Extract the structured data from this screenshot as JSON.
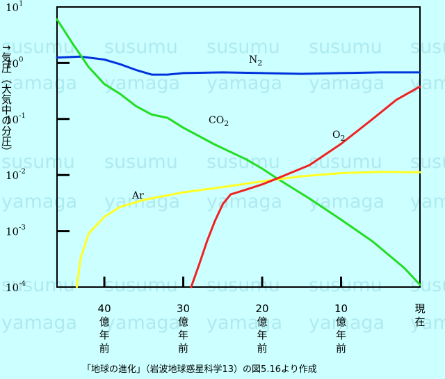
{
  "chart_data": {
    "type": "line",
    "title": "",
    "ylabel": "↑気圧（大気中の分圧）",
    "y_scale": "log",
    "ylim": [
      0.0001,
      10
    ],
    "y_ticks": [
      {
        "base": "10",
        "exp": "1"
      },
      {
        "base": "10",
        "exp": "0"
      },
      {
        "base": "10",
        "exp": "-1"
      },
      {
        "base": "10",
        "exp": "-2"
      },
      {
        "base": "10",
        "exp": "-3"
      },
      {
        "base": "10",
        "exp": "-4"
      }
    ],
    "xlabel": "",
    "xlim": [
      46,
      0
    ],
    "x_ticks": [
      {
        "value": 40,
        "label": "40",
        "unit": [
          "億",
          "年",
          "前"
        ]
      },
      {
        "value": 30,
        "label": "30",
        "unit": [
          "億",
          "年",
          "前"
        ]
      },
      {
        "value": 20,
        "label": "20",
        "unit": [
          "億",
          "年",
          "前"
        ]
      },
      {
        "value": 10,
        "label": "10",
        "unit": [
          "億",
          "年",
          "前"
        ]
      },
      {
        "value": 0,
        "label": "",
        "unit": [
          "現",
          "在"
        ]
      }
    ],
    "grid": false,
    "series": [
      {
        "name": "N2",
        "color": "#0033dd",
        "x": [
          46,
          43,
          40,
          38,
          36,
          34,
          32,
          30,
          25,
          20,
          15,
          10,
          5,
          0
        ],
        "y": [
          1.25,
          1.3,
          1.15,
          0.95,
          0.75,
          0.62,
          0.62,
          0.66,
          0.68,
          0.66,
          0.64,
          0.66,
          0.68,
          0.68
        ]
      },
      {
        "name": "CO2",
        "color": "#22dd22",
        "x": [
          46,
          44,
          42,
          40,
          38,
          36,
          34,
          32,
          30,
          26,
          22,
          20,
          18,
          14,
          10,
          6,
          2,
          0
        ],
        "y": [
          6.0,
          2.2,
          0.85,
          0.42,
          0.28,
          0.17,
          0.12,
          0.105,
          0.07,
          0.035,
          0.019,
          0.013,
          0.0085,
          0.0038,
          0.0016,
          0.00065,
          0.00022,
          0.00011
        ]
      },
      {
        "name": "Ar",
        "color": "#ffff22",
        "x": [
          43.5,
          43,
          42,
          40,
          38,
          35,
          30,
          25,
          20,
          15,
          10,
          5,
          0
        ],
        "y": [
          0.0001,
          0.00033,
          0.0009,
          0.0018,
          0.0027,
          0.0036,
          0.0049,
          0.0061,
          0.0077,
          0.0095,
          0.0108,
          0.0114,
          0.0112
        ]
      },
      {
        "name": "O2",
        "color": "#ee2222",
        "x": [
          29,
          28,
          27,
          26,
          25,
          24,
          22,
          20,
          18,
          14,
          10,
          6,
          3,
          0
        ],
        "y": [
          0.0001,
          0.00025,
          0.00065,
          0.0015,
          0.003,
          0.0045,
          0.0055,
          0.0068,
          0.0088,
          0.015,
          0.036,
          0.1,
          0.22,
          0.38
        ]
      }
    ],
    "legend": "inline"
  },
  "watermark": {
    "rows": [
      {
        "text": "susumu"
      },
      {
        "text": "yamaga"
      }
    ]
  },
  "caption": "「地球の進化」（岩波地球惑星科学13）の図5.16より作成"
}
